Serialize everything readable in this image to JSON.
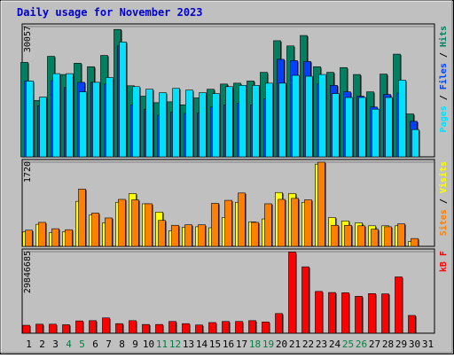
{
  "chart_data": {
    "type": "bar",
    "title": "Daily usage for November 2023",
    "days": [
      "1",
      "2",
      "3",
      "4",
      "5",
      "6",
      "7",
      "8",
      "9",
      "10",
      "11",
      "12",
      "13",
      "14",
      "15",
      "16",
      "17",
      "18",
      "19",
      "20",
      "21",
      "22",
      "23",
      "24",
      "25",
      "26",
      "27",
      "28",
      "29",
      "30",
      "31"
    ],
    "weekend_days": [
      "4",
      "5",
      "11",
      "12",
      "18",
      "19",
      "25",
      "26"
    ],
    "colors": {
      "background": "#c0c0c0",
      "hits": "#008060",
      "files": "#0040ff",
      "pages": "#00e0ff",
      "visits": "#ffff00",
      "sites": "#ff8000",
      "kbytes": "#ff0000",
      "title": "#0000cc",
      "weekend": "#008040"
    },
    "panels": [
      {
        "name": "hits-files-pages",
        "ymax_label": "30057",
        "ymax": 30057,
        "legend": [
          {
            "label": "Pages",
            "color": "#00e0ff"
          },
          {
            "label": " / ",
            "color": "#000000"
          },
          {
            "label": "Files",
            "color": "#0040ff"
          },
          {
            "label": " / ",
            "color": "#000000"
          },
          {
            "label": "Hits",
            "color": "#008060"
          }
        ],
        "series": [
          {
            "name": "Hits",
            "color": "#008060",
            "values": [
              21800,
              13000,
              23200,
              19000,
              21600,
              20800,
              23400,
              29400,
              16400,
              14000,
              12500,
              12700,
              12000,
              13600,
              15600,
              16800,
              17000,
              17500,
              19500,
              26800,
              25600,
              28000,
              20800,
              19500,
              20600,
              19000,
              15000,
              19100,
              23700,
              9900,
              0
            ]
          },
          {
            "name": "Files",
            "color": "#0040ff",
            "values": [
              17500,
              11800,
              17600,
              16000,
              17200,
              17200,
              16800,
              25600,
              12000,
              11000,
              9600,
              10300,
              10000,
              10100,
              11500,
              12000,
              12400,
              12000,
              13400,
              22500,
              22200,
              22000,
              16800,
              16500,
              15000,
              14000,
              11500,
              14400,
              14700,
              8200,
              0
            ]
          },
          {
            "name": "Pages",
            "color": "#00e0ff",
            "values": [
              17500,
              13800,
              19200,
              19200,
              15000,
              17200,
              18300,
              26500,
              16200,
              15600,
              14800,
              15800,
              15400,
              14800,
              14600,
              16200,
              16500,
              16500,
              17000,
              17000,
              18800,
              18600,
              19000,
              14600,
              13700,
              13700,
              11000,
              13700,
              17700,
              6300,
              0
            ]
          }
        ]
      },
      {
        "name": "visits-sites",
        "ymax_label": "1720",
        "ymax": 1720,
        "legend": [
          {
            "label": "Sites",
            "color": "#ff8000"
          },
          {
            "label": " / ",
            "color": "#000000"
          },
          {
            "label": "Visits",
            "color": "#ffff00"
          }
        ],
        "series": [
          {
            "name": "Visits",
            "color": "#ffff00",
            "values": [
              300,
              450,
              280,
              300,
              920,
              640,
              480,
              900,
              1080,
              870,
              700,
              320,
              390,
              400,
              380,
              590,
              900,
              500,
              560,
              1100,
              1080,
              900,
              1680,
              590,
              520,
              480,
              420,
              420,
              420,
              100,
              0
            ]
          },
          {
            "name": "Sites",
            "color": "#ff8000",
            "values": [
              330,
              490,
              360,
              340,
              1170,
              680,
              580,
              960,
              950,
              870,
              530,
              430,
              440,
              440,
              880,
              940,
              1090,
              490,
              870,
              960,
              980,
              950,
              1720,
              430,
              430,
              420,
              350,
              400,
              460,
              160,
              0
            ]
          }
        ]
      },
      {
        "name": "kbytes",
        "ymax_label": "29846685",
        "ymax": 29846685,
        "legend": [
          {
            "label": "kB F",
            "color": "#ff0000"
          }
        ],
        "series": [
          {
            "name": "kB F",
            "color": "#ff0000",
            "values": [
              2900000,
              3300000,
              3300000,
              3100000,
              4500000,
              4600000,
              5600000,
              3500000,
              4600000,
              3200000,
              3200000,
              4300000,
              3500000,
              3000000,
              3900000,
              4300000,
              4300000,
              4600000,
              4100000,
              7200000,
              29700000,
              24300000,
              15300000,
              14900000,
              14800000,
              13500000,
              14500000,
              14400000,
              20600000,
              6500000,
              0
            ]
          }
        ]
      }
    ]
  }
}
